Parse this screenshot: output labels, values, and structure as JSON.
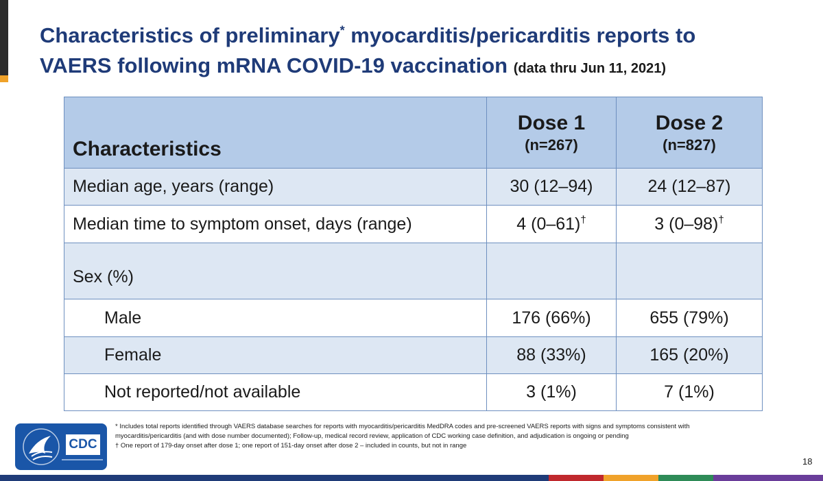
{
  "title": {
    "line1_a": "Characteristics of preliminary",
    "line1_sup": "*",
    "line1_b": " myocarditis/pericarditis reports to",
    "line2": "VAERS following mRNA COVID-19 vaccination",
    "date_note": "(data thru Jun 11, 2021)"
  },
  "table": {
    "header": {
      "characteristics": "Characteristics",
      "dose1_title": "Dose 1",
      "dose1_n": "(n=267)",
      "dose2_title": "Dose 2",
      "dose2_n": "(n=827)"
    },
    "rows": [
      {
        "label": "Median age, years (range)",
        "dose1": "30 (12–94)",
        "dose2": "24 (12–87)"
      },
      {
        "label": "Median time to symptom onset, days (range)",
        "dose1": "4 (0–61)",
        "dose1_sup": "†",
        "dose2": "3 (0–98)",
        "dose2_sup": "†"
      },
      {
        "label": "Sex (%)",
        "dose1": "",
        "dose2": ""
      },
      {
        "label": "Male",
        "dose1": "176 (66%)",
        "dose2": "655 (79%)"
      },
      {
        "label": "Female",
        "dose1": "88 (33%)",
        "dose2": "165 (20%)"
      },
      {
        "label": "Not reported/not available",
        "dose1": "3 (1%)",
        "dose2": "7 (1%)"
      }
    ]
  },
  "logo": {
    "text": "CDC",
    "icon": "hhs-eagle-icon"
  },
  "footnotes": {
    "star": "* Includes total reports identified through VAERS database searches for reports with myocarditis/pericarditis MedDRA codes and pre-screened VAERS reports with signs and symptoms consistent with myocarditis/pericarditis (and with dose number documented); Follow-up, medical record review, application of CDC working case definition, and adjudication is ongoing or pending",
    "dagger": "† One report of 179-day onset after dose 1; one report of 151-day onset after dose 2 – included  in counts, but not in range"
  },
  "page_number": "18",
  "colors": {
    "title": "#1f3b78",
    "header_fill": "#b4cbe8",
    "row_light": "#dde7f3",
    "border": "#6d8fbf",
    "accent_gold": "#f0a22a",
    "logo_blue": "#1a56a8",
    "strip": [
      "#1f3b78",
      "#c0282d",
      "#f0a22a",
      "#2e8b57",
      "#6a3d9a"
    ]
  }
}
